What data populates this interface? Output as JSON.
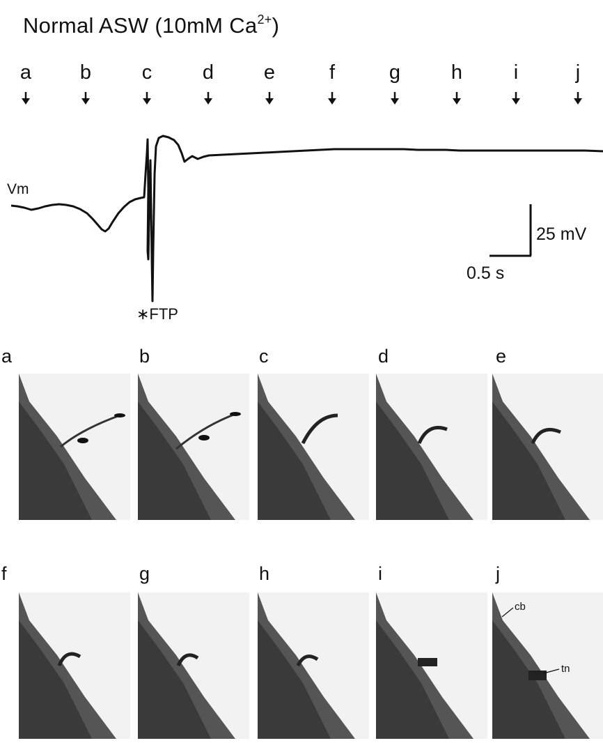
{
  "figure": {
    "title_main": "Normal ASW (10mM Ca",
    "title_sup": "2+",
    "title_close": ")",
    "time_markers": [
      "a",
      "b",
      "c",
      "d",
      "e",
      "f",
      "g",
      "h",
      "i",
      "j"
    ],
    "trace_label": "Vm",
    "event_label": "∗FTP",
    "scale_bar": {
      "voltage": "25 mV",
      "time": "0.5 s"
    },
    "panels_row1": [
      "a",
      "b",
      "c",
      "d",
      "e"
    ],
    "panels_row2": [
      "f",
      "g",
      "h",
      "i",
      "j"
    ],
    "annotations": {
      "cb": "cb",
      "tn": "tn"
    }
  }
}
